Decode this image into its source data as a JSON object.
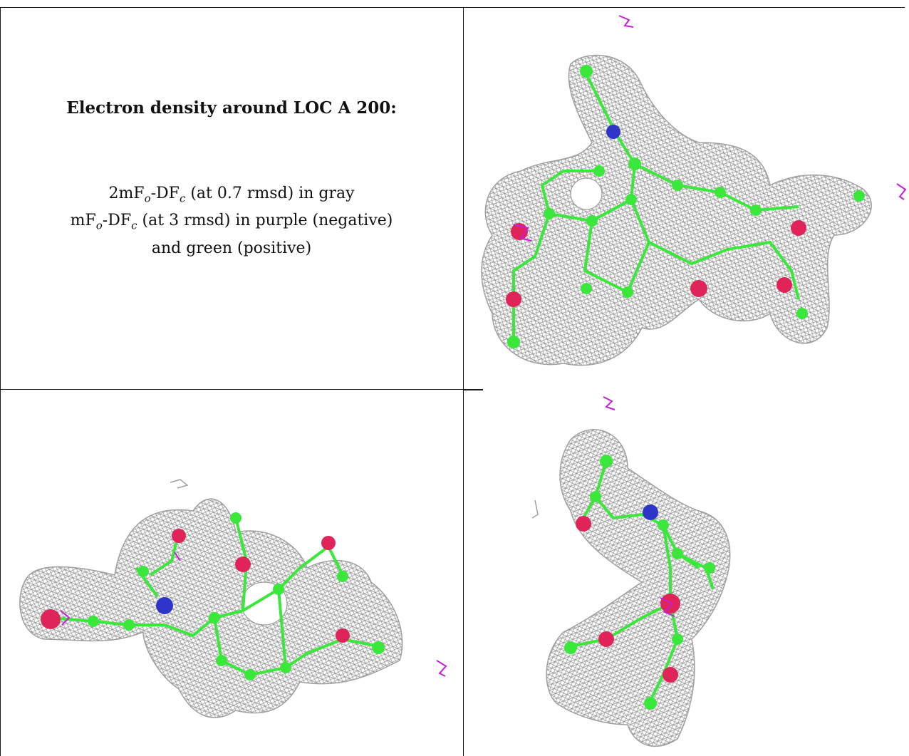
{
  "caption": {
    "title": "Electron density around LOC A 200:",
    "line1": [
      "2mF",
      "o",
      "-DF",
      "c",
      " (at 0.7 rmsd) in gray"
    ],
    "line2": [
      "mF",
      "o",
      "-DF",
      "c",
      " (at 3 rmsd) in purple (negative)"
    ],
    "line3": "and green (positive)"
  },
  "colors": {
    "mesh": "#9a9a9a",
    "carbon": "#39e83a",
    "oxygen": "#e0245a",
    "nitrogen": "#2f34c8",
    "negative_density": "#c21fd6",
    "border": "#1a1a1a"
  },
  "views": [
    {
      "id": "view-top-right",
      "icons": [
        "mesh-density-icon",
        "ligand-model-icon"
      ]
    },
    {
      "id": "view-bottom-left",
      "icons": [
        "mesh-density-icon",
        "ligand-model-icon"
      ]
    },
    {
      "id": "view-bottom-right",
      "icons": [
        "mesh-density-icon",
        "ligand-model-icon"
      ]
    }
  ]
}
